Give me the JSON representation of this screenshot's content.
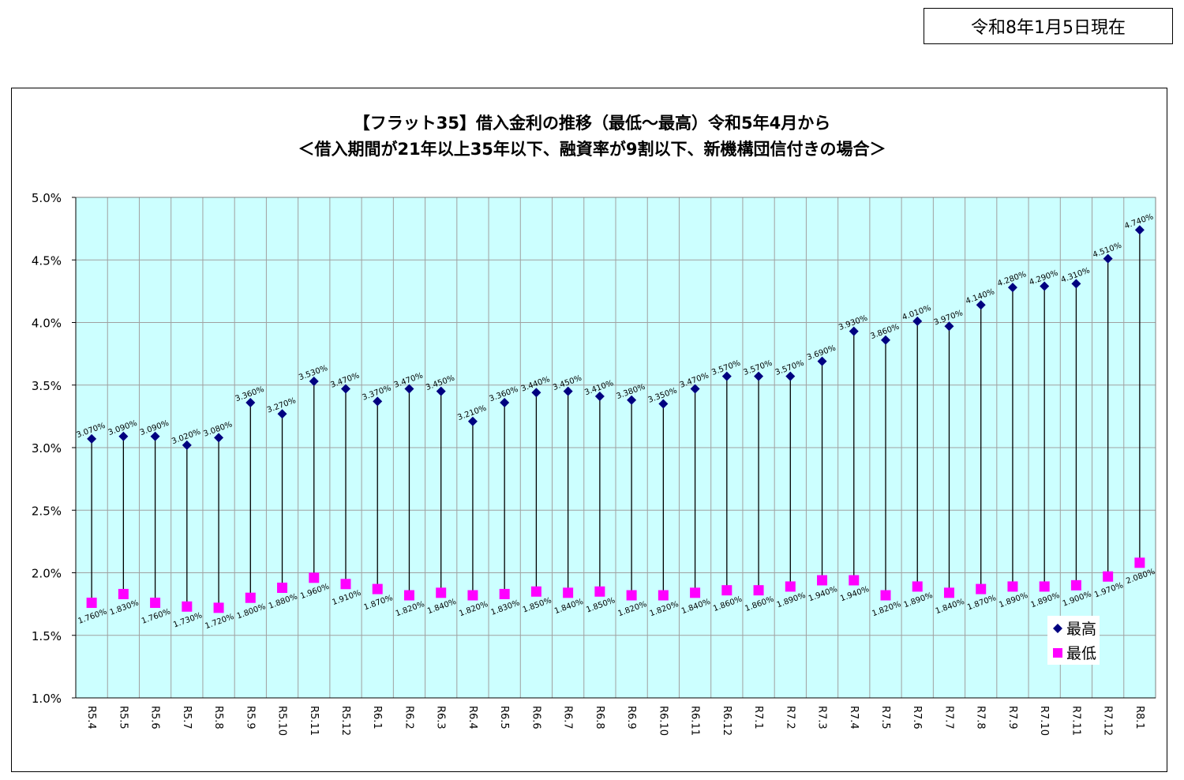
{
  "date_label": "令和8年1月5日現在",
  "colors": {
    "plot_bg": "#ccffff",
    "grid": "#a0a0a0",
    "max_marker": "#000080",
    "min_marker": "#ff00ff",
    "line": "#000000"
  },
  "chart_data": {
    "type": "scatter",
    "title_line1": "【フラット35】借入金利の推移（最低～最高）令和5年4月から",
    "title_line2": "＜借入期間が21年以上35年以下、融資率が9割以下、新機構団信付きの場合＞",
    "categories": [
      "R5.4",
      "R5.5",
      "R5.6",
      "R5.7",
      "R5.8",
      "R5.9",
      "R5.10",
      "R5.11",
      "R5.12",
      "R6.1",
      "R6.2",
      "R6.3",
      "R6.4",
      "R6.5",
      "R6.6",
      "R6.7",
      "R6.8",
      "R6.9",
      "R6.10",
      "R6.11",
      "R6.12",
      "R7.1",
      "R7.2",
      "R7.3",
      "R7.4",
      "R7.5",
      "R7.6",
      "R7.7",
      "R7.8",
      "R7.9",
      "R7.10",
      "R7.11",
      "R7.12",
      "R8.1"
    ],
    "series": [
      {
        "name": "最高",
        "marker": "diamond",
        "values": [
          3.07,
          3.09,
          3.09,
          3.02,
          3.08,
          3.36,
          3.27,
          3.53,
          3.47,
          3.37,
          3.47,
          3.45,
          3.21,
          3.36,
          3.44,
          3.45,
          3.41,
          3.38,
          3.35,
          3.47,
          3.57,
          3.57,
          3.57,
          3.69,
          3.93,
          3.86,
          4.01,
          3.97,
          4.14,
          4.28,
          4.29,
          4.31,
          4.51,
          4.74
        ]
      },
      {
        "name": "最低",
        "marker": "square",
        "values": [
          1.76,
          1.83,
          1.76,
          1.73,
          1.72,
          1.8,
          1.88,
          1.96,
          1.91,
          1.87,
          1.82,
          1.84,
          1.82,
          1.83,
          1.85,
          1.84,
          1.85,
          1.82,
          1.82,
          1.84,
          1.86,
          1.86,
          1.89,
          1.94,
          1.94,
          1.82,
          1.89,
          1.84,
          1.87,
          1.89,
          1.89,
          1.9,
          1.97,
          2.08
        ]
      }
    ],
    "max_labels": [
      "3.070%",
      "3.090%",
      "3.090%",
      "3.020%",
      "3.080%",
      "3.360%",
      "3.270%",
      "3.530%",
      "3.470%",
      "3.370%",
      "3.470%",
      "3.450%",
      "3.210%",
      "3.360%",
      "3.440%",
      "3.450%",
      "3.410%",
      "3.380%",
      "3.350%",
      "3.470%",
      "3.570%",
      "3.570%",
      "3.570%",
      "3.690%",
      "3.930%",
      "3.860%",
      "4.010%",
      "3.970%",
      "4.140%",
      "4.280%",
      "4.290%",
      "4.310%",
      "4.510%",
      "4.740%"
    ],
    "min_labels": [
      "1.760%",
      "1.830%",
      "1.760%",
      "1.730%",
      "1.720%",
      "1.800%",
      "1.880%",
      "1.960%",
      "1.910%",
      "1.870%",
      "1.820%",
      "1.840%",
      "1.820%",
      "1.830%",
      "1.850%",
      "1.840%",
      "1.850%",
      "1.820%",
      "1.820%",
      "1.840%",
      "1.860%",
      "1.860%",
      "1.890%",
      "1.940%",
      "1.940%",
      "1.820%",
      "1.890%",
      "1.840%",
      "1.870%",
      "1.890%",
      "1.890%",
      "1.900%",
      "1.970%",
      "2.080%"
    ],
    "y_ticks": [
      "1.0%",
      "1.5%",
      "2.0%",
      "2.5%",
      "3.0%",
      "3.5%",
      "4.0%",
      "4.5%",
      "5.0%"
    ],
    "ylim": [
      1.0,
      5.0
    ],
    "grid": true,
    "legend_position": "bottom-right"
  }
}
